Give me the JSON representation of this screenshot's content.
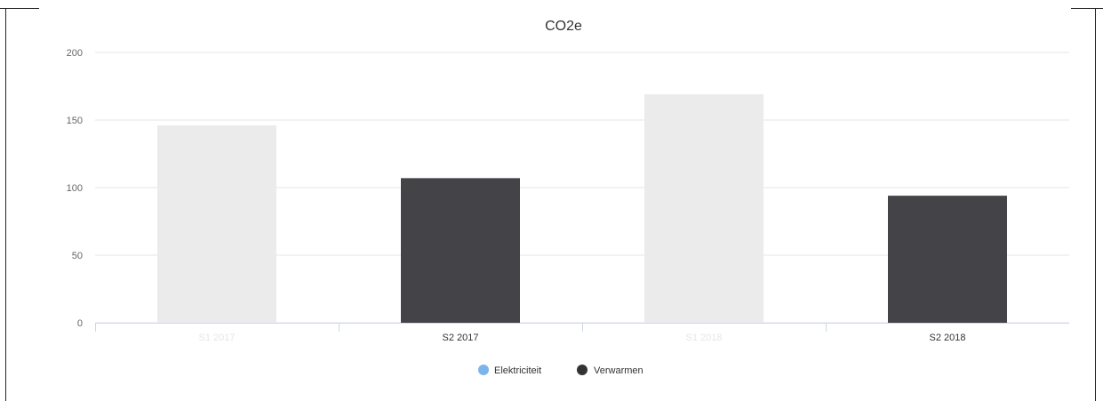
{
  "chart_data": {
    "type": "bar",
    "title": "CO2e",
    "categories": [
      "S1 2017",
      "S2 2017",
      "S1 2018",
      "S2 2018"
    ],
    "values": [
      146,
      107,
      169,
      94
    ],
    "bar_colors": [
      "#ebebeb",
      "#434348",
      "#ebebeb",
      "#434348"
    ],
    "category_label_colors": [
      "#e6e6e6",
      "#333333",
      "#e6e6e6",
      "#333333"
    ],
    "ylim": [
      0,
      200
    ],
    "yticks": [
      "0",
      "50",
      "100",
      "150",
      "200"
    ],
    "xlabel": "",
    "ylabel": "",
    "grid": true,
    "legend": {
      "position": "bottom-center",
      "items": [
        {
          "name": "Elektriciteit",
          "color": "#7cb5ec"
        },
        {
          "name": "Verwarmen",
          "color": "#333333"
        }
      ]
    }
  }
}
